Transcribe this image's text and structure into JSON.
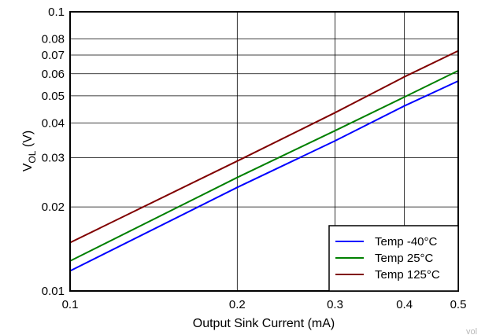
{
  "chart_data": {
    "type": "line",
    "xlabel": "Output Sink Current (mA)",
    "ylabel_main": "V",
    "ylabel_sub": "OL",
    "ylabel_unit": " (V)",
    "xscale": "log",
    "yscale": "log",
    "xlim": [
      0.1,
      0.5
    ],
    "ylim": [
      0.01,
      0.1
    ],
    "grid": true,
    "legend_position": "bottom-right",
    "x_ticks": [
      "0.1",
      "0.2",
      "0.3",
      "0.4",
      "0.5"
    ],
    "x_tick_values": [
      0.1,
      0.2,
      0.3,
      0.4,
      0.5
    ],
    "y_ticks": [
      "0.01",
      "0.02",
      "0.03",
      "0.04",
      "0.05",
      "0.06",
      "0.07",
      "0.08",
      "0.1"
    ],
    "y_tick_values": [
      0.01,
      0.02,
      0.03,
      0.04,
      0.05,
      0.06,
      0.07,
      0.08,
      0.1
    ],
    "series": [
      {
        "name": "Temp -40°C",
        "color": "#0000ff",
        "x": [
          0.1,
          0.2,
          0.3,
          0.4,
          0.5
        ],
        "y": [
          0.0118,
          0.0235,
          0.0345,
          0.046,
          0.0565
        ]
      },
      {
        "name": "Temp 25°C",
        "color": "#008000",
        "x": [
          0.1,
          0.2,
          0.3,
          0.4,
          0.5
        ],
        "y": [
          0.0128,
          0.0255,
          0.0375,
          0.0495,
          0.0615
        ]
      },
      {
        "name": "Temp 125°C",
        "color": "#800000",
        "x": [
          0.1,
          0.2,
          0.3,
          0.4,
          0.5
        ],
        "y": [
          0.0149,
          0.0292,
          0.0435,
          0.0585,
          0.0725
        ]
      }
    ],
    "watermark": "vol"
  }
}
